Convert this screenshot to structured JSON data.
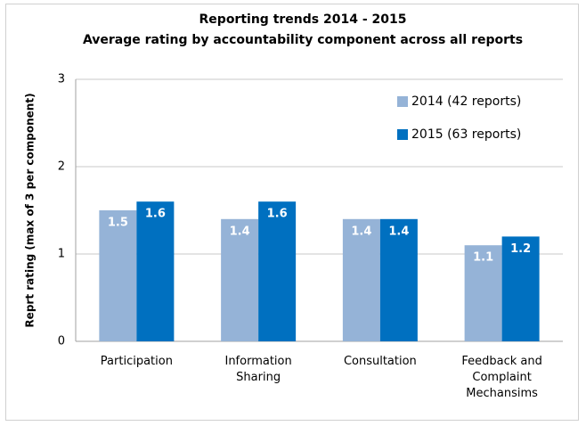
{
  "chart_data": {
    "type": "bar",
    "title": "Reporting trends 2014 - 2015",
    "subtitle": "Average rating by accountability component across all reports",
    "y_label": "Reprt rating (max of 3 per component)",
    "categories": [
      "Participation",
      "Information Sharing",
      "Consultation",
      "Feedback and Complaint Mechansims"
    ],
    "series": [
      {
        "name": "2014 (42 reports)",
        "color": "#95b3d7",
        "values": [
          1.5,
          1.4,
          1.4,
          1.1
        ]
      },
      {
        "name": "2015 (63 reports)",
        "color": "#0070c0",
        "values": [
          1.6,
          1.6,
          1.4,
          1.2
        ]
      }
    ],
    "ylim": [
      0,
      3
    ],
    "yticks": [
      0,
      1,
      2,
      3
    ],
    "grid": true,
    "legend": "top-right"
  }
}
